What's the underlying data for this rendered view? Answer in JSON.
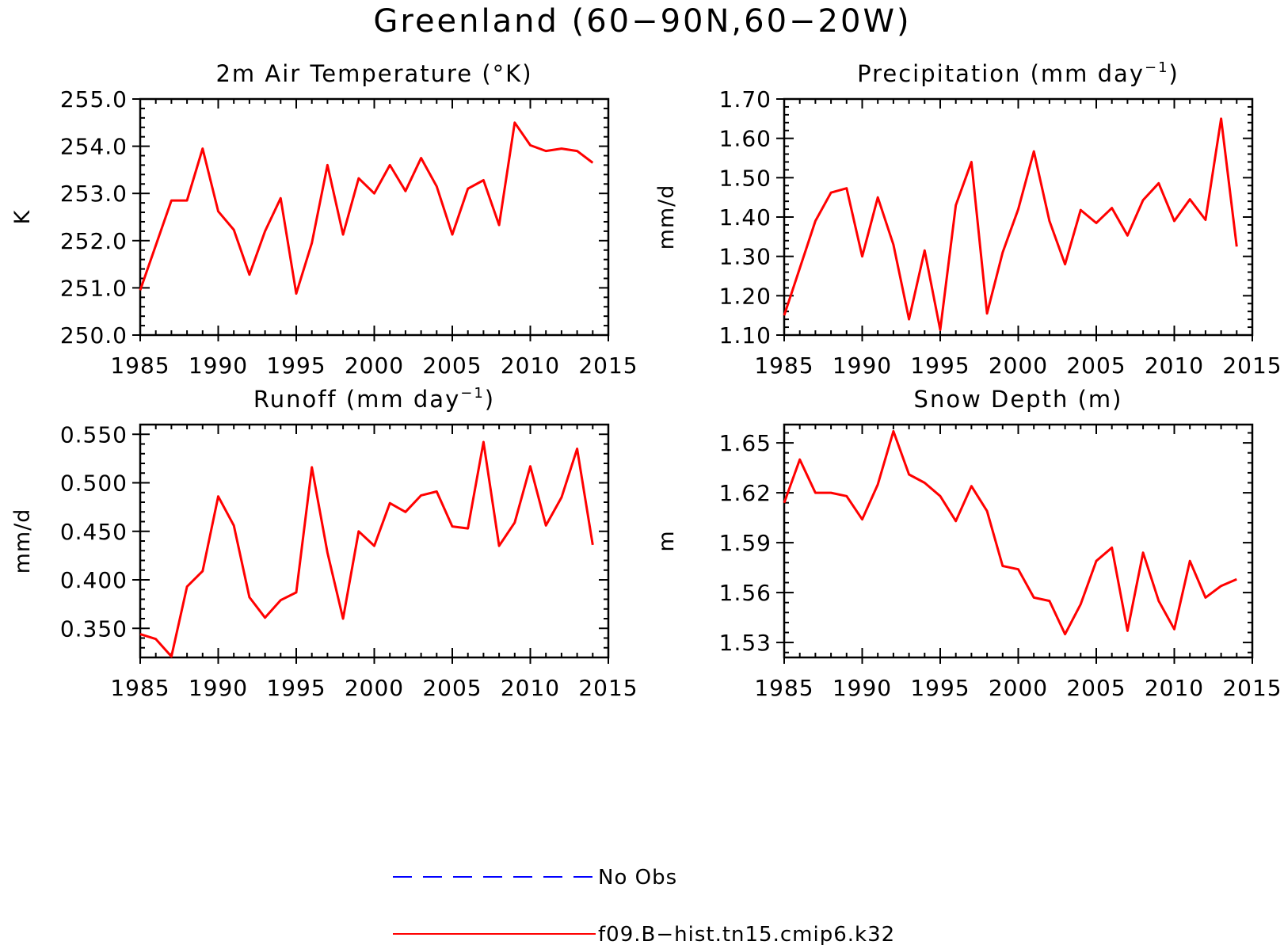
{
  "figure": {
    "title": "Greenland (60−90N,60−20W)"
  },
  "legend": {
    "entries": [
      {
        "label": "No Obs",
        "color": "#0000ff",
        "style": "dashed"
      },
      {
        "label": "f09.B−hist.tn15.cmip6.k32",
        "color": "#ff0000",
        "style": "solid"
      }
    ]
  },
  "chart_data": [
    {
      "type": "line",
      "title": "2m Air Temperature (°K)",
      "title_sup": "",
      "title_end": "",
      "ylabel": "K",
      "xlim": [
        1985,
        2015
      ],
      "ylim": [
        250.0,
        255.0
      ],
      "xticks": [
        "1985",
        "1990",
        "1995",
        "2000",
        "2005",
        "2010",
        "2015"
      ],
      "yticks": [
        "250.0",
        "251.0",
        "252.0",
        "253.0",
        "254.0",
        "255.0"
      ],
      "grid": false,
      "x": [
        1985,
        1986,
        1987,
        1988,
        1989,
        1990,
        1991,
        1992,
        1993,
        1994,
        1995,
        1996,
        1997,
        1998,
        1999,
        2000,
        2001,
        2002,
        2003,
        2004,
        2005,
        2006,
        2007,
        2008,
        2009,
        2010,
        2011,
        2012,
        2013,
        2014
      ],
      "series": [
        {
          "name": "f09.B−hist.tn15.cmip6.k32",
          "color": "#ff0000",
          "values": [
            250.95,
            251.9,
            252.85,
            252.85,
            253.95,
            252.62,
            252.23,
            251.28,
            252.2,
            252.9,
            250.88,
            251.95,
            253.6,
            252.13,
            253.32,
            253.0,
            253.6,
            253.05,
            253.75,
            253.15,
            252.13,
            253.1,
            253.28,
            252.33,
            254.5,
            254.02,
            253.9,
            253.95,
            253.9,
            253.65
          ]
        }
      ]
    },
    {
      "type": "line",
      "title": "Precipitation (mm day",
      "title_sup": "−1",
      "title_end": ")",
      "ylabel": "mm/d",
      "xlim": [
        1985,
        2015
      ],
      "ylim": [
        1.1,
        1.7
      ],
      "xticks": [
        "1985",
        "1990",
        "1995",
        "2000",
        "2005",
        "2010",
        "2015"
      ],
      "yticks": [
        "1.10",
        "1.20",
        "1.30",
        "1.40",
        "1.50",
        "1.60",
        "1.70"
      ],
      "grid": false,
      "x": [
        1985,
        1986,
        1987,
        1988,
        1989,
        1990,
        1991,
        1992,
        1993,
        1994,
        1995,
        1996,
        1997,
        1998,
        1999,
        2000,
        2001,
        2002,
        2003,
        2004,
        2005,
        2006,
        2007,
        2008,
        2009,
        2010,
        2011,
        2012,
        2013,
        2014
      ],
      "series": [
        {
          "name": "f09.B−hist.tn15.cmip6.k32",
          "color": "#ff0000",
          "values": [
            1.15,
            1.27,
            1.39,
            1.462,
            1.473,
            1.3,
            1.45,
            1.33,
            1.14,
            1.315,
            1.113,
            1.43,
            1.54,
            1.155,
            1.31,
            1.42,
            1.567,
            1.39,
            1.28,
            1.418,
            1.385,
            1.423,
            1.353,
            1.443,
            1.486,
            1.39,
            1.445,
            1.393,
            1.65,
            1.325
          ]
        }
      ]
    },
    {
      "type": "line",
      "title": "Runoff (mm day",
      "title_sup": "−1",
      "title_end": ")",
      "ylabel": "mm/d",
      "xlim": [
        1985,
        2015
      ],
      "ylim": [
        0.32,
        0.56
      ],
      "xticks": [
        "1985",
        "1990",
        "1995",
        "2000",
        "2005",
        "2010",
        "2015"
      ],
      "yticks": [
        "0.350",
        "0.400",
        "0.450",
        "0.500",
        "0.550"
      ],
      "grid": false,
      "x": [
        1985,
        1986,
        1987,
        1988,
        1989,
        1990,
        1991,
        1992,
        1993,
        1994,
        1995,
        1996,
        1997,
        1998,
        1999,
        2000,
        2001,
        2002,
        2003,
        2004,
        2005,
        2006,
        2007,
        2008,
        2009,
        2010,
        2011,
        2012,
        2013,
        2014
      ],
      "series": [
        {
          "name": "f09.B−hist.tn15.cmip6.k32",
          "color": "#ff0000",
          "values": [
            0.344,
            0.339,
            0.321,
            0.393,
            0.409,
            0.486,
            0.456,
            0.382,
            0.361,
            0.379,
            0.387,
            0.516,
            0.428,
            0.36,
            0.45,
            0.435,
            0.479,
            0.47,
            0.487,
            0.491,
            0.455,
            0.453,
            0.542,
            0.435,
            0.459,
            0.517,
            0.456,
            0.485,
            0.535,
            0.436
          ]
        }
      ]
    },
    {
      "type": "line",
      "title": "Snow Depth (m)",
      "title_sup": "",
      "title_end": "",
      "ylabel": "m",
      "xlim": [
        1985,
        2015
      ],
      "ylim": [
        1.521,
        1.661
      ],
      "xticks": [
        "1985",
        "1990",
        "1995",
        "2000",
        "2005",
        "2010",
        "2015"
      ],
      "yticks": [
        "1.53",
        "1.56",
        "1.59",
        "1.62",
        "1.65"
      ],
      "grid": false,
      "x": [
        1985,
        1986,
        1987,
        1988,
        1989,
        1990,
        1991,
        1992,
        1993,
        1994,
        1995,
        1996,
        1997,
        1998,
        1999,
        2000,
        2001,
        2002,
        2003,
        2004,
        2005,
        2006,
        2007,
        2008,
        2009,
        2010,
        2011,
        2012,
        2013,
        2014
      ],
      "series": [
        {
          "name": "f09.B−hist.tn15.cmip6.k32",
          "color": "#ff0000",
          "values": [
            1.614,
            1.64,
            1.62,
            1.62,
            1.618,
            1.604,
            1.625,
            1.657,
            1.631,
            1.626,
            1.618,
            1.603,
            1.624,
            1.609,
            1.576,
            1.574,
            1.557,
            1.555,
            1.535,
            1.553,
            1.579,
            1.587,
            1.537,
            1.584,
            1.555,
            1.538,
            1.579,
            1.557,
            1.564,
            1.568
          ]
        }
      ]
    }
  ]
}
